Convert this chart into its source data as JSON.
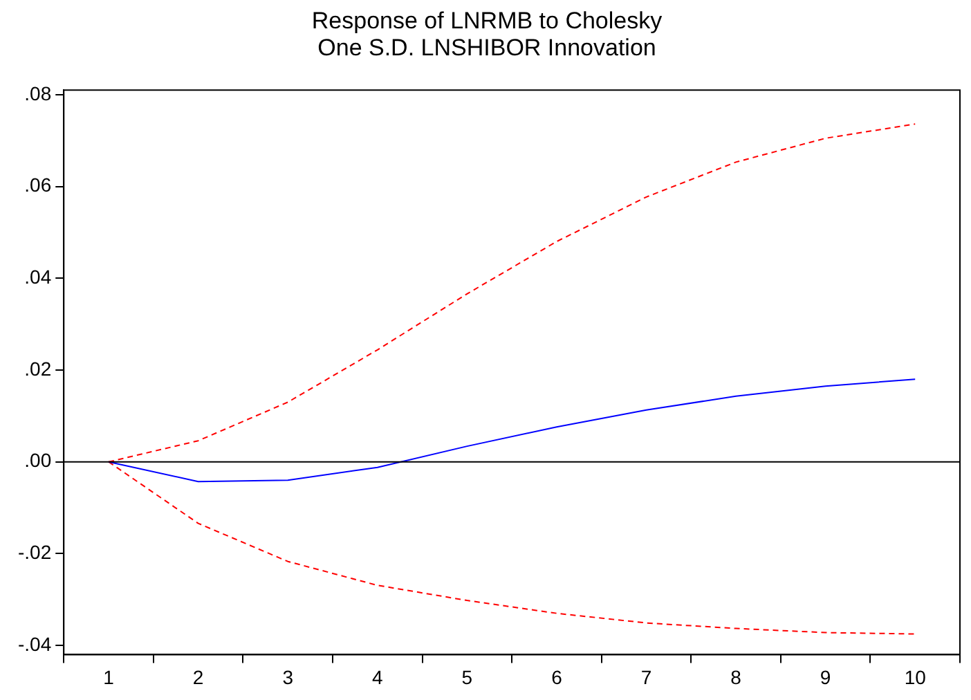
{
  "chart_data": {
    "type": "line",
    "title": "Response of LNRMB to Cholesky\nOne S.D. LNSHIBOR Innovation",
    "categories": [
      "1",
      "2",
      "3",
      "4",
      "5",
      "6",
      "7",
      "8",
      "9",
      "10"
    ],
    "series": [
      {
        "color": "#0000ff",
        "line_style": "solid",
        "values": [
          0,
          -0.0043,
          -0.004,
          -0.0012,
          0.0034,
          0.0076,
          0.0113,
          0.0143,
          0.0165,
          0.018
        ]
      },
      {
        "color": "#ff0000",
        "line_style": "dashed",
        "values": [
          0,
          0.0046,
          0.013,
          0.0244,
          0.0366,
          0.048,
          0.0577,
          0.0653,
          0.0705,
          0.0736
        ]
      },
      {
        "color": "#ff0000",
        "line_style": "dashed",
        "values": [
          0,
          -0.0134,
          -0.0217,
          -0.0269,
          -0.0302,
          -0.033,
          -0.0351,
          -0.0363,
          -0.0372,
          -0.0375
        ]
      }
    ],
    "ylim": [
      -0.042,
      0.081
    ],
    "yticks": [
      {
        "value": -0.04,
        "label": "-.04"
      },
      {
        "value": -0.02,
        "label": "-.02"
      },
      {
        "value": 0,
        "label": ".00"
      },
      {
        "value": 0.02,
        "label": ".02"
      },
      {
        "value": 0.04,
        "label": ".04"
      },
      {
        "value": 0.06,
        "label": ".06"
      },
      {
        "value": 0.08,
        "label": ".08"
      }
    ],
    "ref_lines": [
      {
        "axis": "y",
        "value": 0,
        "color": "#000000"
      }
    ],
    "grid": false,
    "legend": false,
    "marker": "none"
  }
}
